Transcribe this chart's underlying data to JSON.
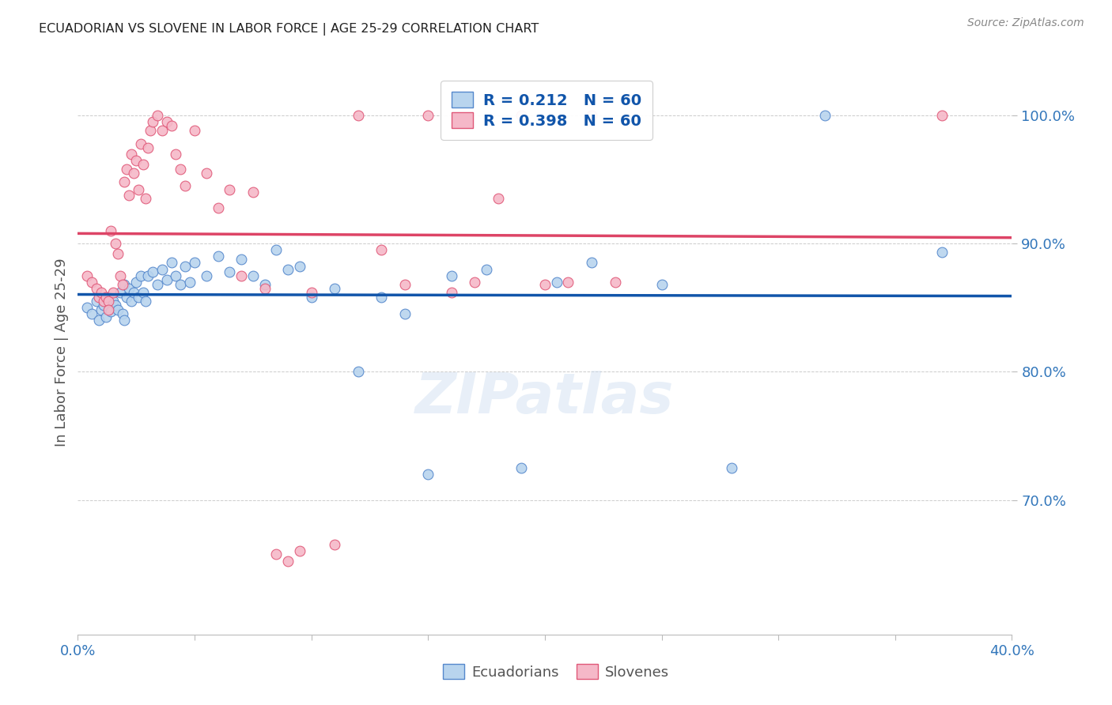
{
  "title": "ECUADORIAN VS SLOVENE IN LABOR FORCE | AGE 25-29 CORRELATION CHART",
  "source": "Source: ZipAtlas.com",
  "ylabel": "In Labor Force | Age 25-29",
  "xlim": [
    0.0,
    0.4
  ],
  "ylim": [
    0.595,
    1.035
  ],
  "yticks": [
    0.7,
    0.8,
    0.9,
    1.0
  ],
  "ytick_labels": [
    "70.0%",
    "80.0%",
    "90.0%",
    "100.0%"
  ],
  "xticks": [
    0.0,
    0.05,
    0.1,
    0.15,
    0.2,
    0.25,
    0.3,
    0.35,
    0.4
  ],
  "R_blue": 0.212,
  "N_blue": 60,
  "R_pink": 0.398,
  "N_pink": 60,
  "blue_face": "#B8D4EE",
  "blue_edge": "#5588CC",
  "pink_face": "#F5B8C8",
  "pink_edge": "#E05878",
  "blue_line": "#1155AA",
  "pink_line": "#DD4466",
  "title_color": "#222222",
  "tick_color": "#3377BB",
  "watermark": "ZIPatlas",
  "blue_x": [
    0.004,
    0.006,
    0.008,
    0.009,
    0.01,
    0.011,
    0.012,
    0.013,
    0.014,
    0.015,
    0.016,
    0.017,
    0.018,
    0.019,
    0.02,
    0.02,
    0.021,
    0.022,
    0.023,
    0.024,
    0.025,
    0.026,
    0.027,
    0.028,
    0.029,
    0.03,
    0.032,
    0.034,
    0.036,
    0.038,
    0.04,
    0.042,
    0.044,
    0.046,
    0.048,
    0.05,
    0.055,
    0.06,
    0.065,
    0.07,
    0.075,
    0.08,
    0.085,
    0.09,
    0.095,
    0.1,
    0.11,
    0.12,
    0.13,
    0.14,
    0.15,
    0.16,
    0.175,
    0.19,
    0.205,
    0.22,
    0.25,
    0.28,
    0.32,
    0.37
  ],
  "blue_y": [
    0.85,
    0.845,
    0.855,
    0.84,
    0.848,
    0.852,
    0.843,
    0.858,
    0.847,
    0.855,
    0.852,
    0.848,
    0.862,
    0.845,
    0.868,
    0.84,
    0.858,
    0.865,
    0.855,
    0.862,
    0.87,
    0.858,
    0.875,
    0.862,
    0.855,
    0.875,
    0.878,
    0.868,
    0.88,
    0.872,
    0.885,
    0.875,
    0.868,
    0.882,
    0.87,
    0.885,
    0.875,
    0.89,
    0.878,
    0.888,
    0.875,
    0.868,
    0.895,
    0.88,
    0.882,
    0.858,
    0.865,
    0.8,
    0.858,
    0.845,
    0.72,
    0.875,
    0.88,
    0.725,
    0.87,
    0.885,
    0.868,
    0.725,
    1.0,
    0.893
  ],
  "pink_x": [
    0.004,
    0.006,
    0.008,
    0.009,
    0.01,
    0.011,
    0.012,
    0.013,
    0.013,
    0.014,
    0.015,
    0.016,
    0.017,
    0.018,
    0.019,
    0.02,
    0.021,
    0.022,
    0.023,
    0.024,
    0.025,
    0.026,
    0.027,
    0.028,
    0.029,
    0.03,
    0.031,
    0.032,
    0.034,
    0.036,
    0.038,
    0.04,
    0.042,
    0.044,
    0.046,
    0.05,
    0.055,
    0.06,
    0.065,
    0.07,
    0.075,
    0.08,
    0.085,
    0.09,
    0.095,
    0.1,
    0.11,
    0.12,
    0.13,
    0.14,
    0.15,
    0.16,
    0.17,
    0.18,
    0.19,
    0.2,
    0.21,
    0.22,
    0.23,
    0.37
  ],
  "pink_y": [
    0.875,
    0.87,
    0.865,
    0.858,
    0.862,
    0.855,
    0.858,
    0.855,
    0.848,
    0.91,
    0.862,
    0.9,
    0.892,
    0.875,
    0.868,
    0.948,
    0.958,
    0.938,
    0.97,
    0.955,
    0.965,
    0.942,
    0.978,
    0.962,
    0.935,
    0.975,
    0.988,
    0.995,
    1.0,
    0.988,
    0.995,
    0.992,
    0.97,
    0.958,
    0.945,
    0.988,
    0.955,
    0.928,
    0.942,
    0.875,
    0.94,
    0.865,
    0.658,
    0.652,
    0.66,
    0.862,
    0.665,
    1.0,
    0.895,
    0.868,
    1.0,
    0.862,
    0.87,
    0.935,
    1.0,
    0.868,
    0.87,
    1.0,
    0.87,
    1.0
  ]
}
